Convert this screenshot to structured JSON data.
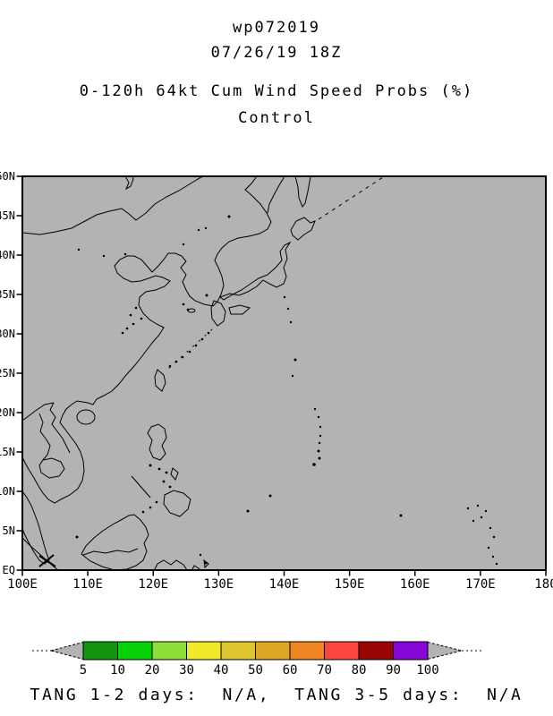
{
  "titles": {
    "storm_id": "wp072019",
    "init_datetime": "07/26/19 18Z",
    "product": "0-120h 64kt Cum Wind Speed Probs (%)",
    "member": "Control"
  },
  "chart_data": {
    "type": "heatmap",
    "title": "0-120h 64kt Cum Wind Speed Probs (%)",
    "subtitle": "Control",
    "storm": "wp072019",
    "init": "07/26/19 18Z",
    "lon_range_deg_east": [
      100,
      180
    ],
    "lat_range_deg_north": [
      0,
      50
    ],
    "lat_ticks": [
      "50N",
      "45N",
      "40N",
      "35N",
      "30N",
      "25N",
      "20N",
      "15N",
      "10N",
      "5N",
      "EQ"
    ],
    "lon_ticks": [
      "100E",
      "110E",
      "120E",
      "130E",
      "140E",
      "150E",
      "160E",
      "170E",
      "180"
    ],
    "colorbar": {
      "values": [
        "5",
        "10",
        "20",
        "30",
        "40",
        "50",
        "60",
        "70",
        "80",
        "90",
        "100"
      ],
      "colors": [
        "#129612",
        "#06d106",
        "#8fdf3b",
        "#f2e92b",
        "#ddc52f",
        "#e0a727",
        "#ef8623",
        "#fa463e",
        "#9a0505",
        "#8706d8"
      ],
      "arrow_color": "#b3b3b3"
    },
    "probability_contours": [],
    "map_background": "#b3b3b3"
  },
  "footer": {
    "tang_line": "TANG 1-2 days:  N/A,  TANG 3-5 days:  N/A"
  }
}
